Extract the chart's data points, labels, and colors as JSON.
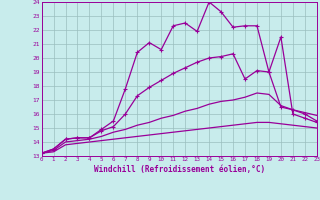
{
  "xlabel": "Windchill (Refroidissement éolien,°C)",
  "background_color": "#c8ecec",
  "grid_color": "#9bbfbf",
  "line_color": "#990099",
  "xlim": [
    0,
    23
  ],
  "ylim": [
    13,
    24
  ],
  "yticks": [
    13,
    14,
    15,
    16,
    17,
    18,
    19,
    20,
    21,
    22,
    23,
    24
  ],
  "xticks": [
    0,
    1,
    2,
    3,
    4,
    5,
    6,
    7,
    8,
    9,
    10,
    11,
    12,
    13,
    14,
    15,
    16,
    17,
    18,
    19,
    20,
    21,
    22,
    23
  ],
  "line1_x": [
    0,
    1,
    2,
    3,
    4,
    5,
    6,
    7,
    8,
    9,
    10,
    11,
    12,
    13,
    14,
    15,
    16,
    17,
    18,
    19,
    20,
    21,
    22,
    23
  ],
  "line1_y": [
    13.2,
    13.5,
    14.2,
    14.3,
    14.3,
    14.9,
    15.5,
    17.8,
    20.4,
    21.1,
    20.6,
    22.3,
    22.5,
    21.9,
    24.0,
    23.3,
    22.2,
    22.3,
    22.3,
    19.0,
    21.5,
    16.0,
    15.7,
    15.4
  ],
  "line2_x": [
    0,
    1,
    2,
    3,
    4,
    5,
    6,
    7,
    8,
    9,
    10,
    11,
    12,
    13,
    14,
    15,
    16,
    17,
    18,
    19,
    20,
    21,
    22,
    23
  ],
  "line2_y": [
    13.2,
    13.5,
    14.2,
    14.3,
    14.3,
    14.8,
    15.1,
    16.0,
    17.3,
    17.9,
    18.4,
    18.9,
    19.3,
    19.7,
    20.0,
    20.1,
    20.3,
    18.5,
    19.1,
    19.0,
    16.5,
    16.3,
    16.0,
    15.5
  ],
  "line3_x": [
    0,
    1,
    2,
    3,
    4,
    5,
    6,
    7,
    8,
    9,
    10,
    11,
    12,
    13,
    14,
    15,
    16,
    17,
    18,
    19,
    20,
    21,
    22,
    23
  ],
  "line3_y": [
    13.2,
    13.4,
    14.0,
    14.1,
    14.2,
    14.4,
    14.7,
    14.9,
    15.2,
    15.4,
    15.7,
    15.9,
    16.2,
    16.4,
    16.7,
    16.9,
    17.0,
    17.2,
    17.5,
    17.4,
    16.6,
    16.3,
    16.1,
    15.9
  ],
  "line4_x": [
    0,
    1,
    2,
    3,
    4,
    5,
    6,
    7,
    8,
    9,
    10,
    11,
    12,
    13,
    14,
    15,
    16,
    17,
    18,
    19,
    20,
    21,
    22,
    23
  ],
  "line4_y": [
    13.2,
    13.3,
    13.8,
    13.9,
    14.0,
    14.1,
    14.2,
    14.3,
    14.4,
    14.5,
    14.6,
    14.7,
    14.8,
    14.9,
    15.0,
    15.1,
    15.2,
    15.3,
    15.4,
    15.4,
    15.3,
    15.2,
    15.1,
    15.0
  ]
}
